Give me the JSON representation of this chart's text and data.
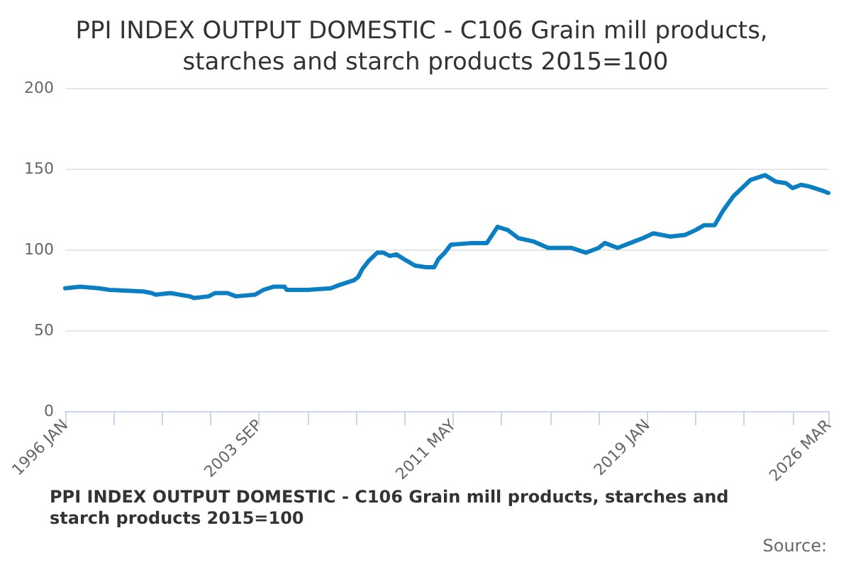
{
  "chart_data": {
    "type": "line",
    "title": "PPI INDEX OUTPUT DOMESTIC - C106 Grain mill products, starches and starch products 2015=100",
    "x": [
      "1996-01",
      "1996-08",
      "1997-05",
      "1997-10",
      "1999-02",
      "1999-06",
      "1999-08",
      "2000-03",
      "2000-12",
      "2001-02",
      "2001-09",
      "2001-12",
      "2002-06",
      "2002-10",
      "2003-07",
      "2003-11",
      "2004-04",
      "2004-09",
      "2004-10",
      "2005-08",
      "2006-07",
      "2006-11",
      "2007-06",
      "2007-08",
      "2007-10",
      "2008-01",
      "2008-05",
      "2008-08",
      "2008-11",
      "2009-02",
      "2009-07",
      "2009-11",
      "2010-04",
      "2010-08",
      "2010-10",
      "2011-01",
      "2011-04",
      "2012-02",
      "2012-09",
      "2013-02",
      "2013-07",
      "2013-12",
      "2014-07",
      "2015-02",
      "2016-01",
      "2016-08",
      "2017-02",
      "2017-05",
      "2017-11",
      "2018-07",
      "2018-11",
      "2019-04",
      "2019-08",
      "2019-12",
      "2020-07",
      "2020-12",
      "2021-04",
      "2021-09",
      "2022-01",
      "2022-06",
      "2022-10",
      "2023-02",
      "2023-09",
      "2024-02",
      "2024-07",
      "2024-10",
      "2025-02",
      "2025-06",
      "2026-01",
      "2026-03"
    ],
    "series": [
      {
        "name": "PPI INDEX OUTPUT DOMESTIC - C106 Grain mill products, starches and starch products 2015=100",
        "color": "#0a7fc4",
        "values": [
          76,
          77,
          76,
          75,
          74,
          73,
          72,
          73,
          71,
          70,
          71,
          73,
          73,
          71,
          72,
          75,
          77,
          77,
          75,
          75,
          76,
          78,
          81,
          83,
          88,
          93,
          98,
          98,
          96,
          97,
          93,
          90,
          89,
          89,
          94,
          98,
          103,
          104,
          104,
          114,
          112,
          107,
          105,
          101,
          101,
          98,
          101,
          104,
          101,
          105,
          107,
          110,
          109,
          108,
          109,
          112,
          115,
          115,
          124,
          133,
          138,
          143,
          146,
          142,
          141,
          138,
          140,
          139,
          136,
          135
        ]
      }
    ],
    "xlim": [
      "1996-01",
      "2026-03"
    ],
    "xticks": [
      {
        "value": "1996-01",
        "label": "1996 JAN"
      },
      {
        "value": "1997-12",
        "label": null
      },
      {
        "value": "1999-11",
        "label": null
      },
      {
        "value": "2001-10",
        "label": null
      },
      {
        "value": "2003-09",
        "label": "2003 SEP"
      },
      {
        "value": "2005-08",
        "label": null
      },
      {
        "value": "2007-07",
        "label": null
      },
      {
        "value": "2009-06",
        "label": null
      },
      {
        "value": "2011-05",
        "label": "2011 MAY"
      },
      {
        "value": "2013-04",
        "label": null
      },
      {
        "value": "2015-03",
        "label": null
      },
      {
        "value": "2017-02",
        "label": null
      },
      {
        "value": "2019-01",
        "label": "2019 JAN"
      },
      {
        "value": "2020-12",
        "label": null
      },
      {
        "value": "2022-11",
        "label": null
      },
      {
        "value": "2024-10",
        "label": null
      },
      {
        "value": "2026-03",
        "label": "2026 MAR"
      }
    ],
    "ylim": [
      0,
      200
    ],
    "yticks": [
      0,
      50,
      100,
      150,
      200
    ],
    "grid": "y",
    "legend": "bottom",
    "annotations": [
      "Source:"
    ]
  }
}
